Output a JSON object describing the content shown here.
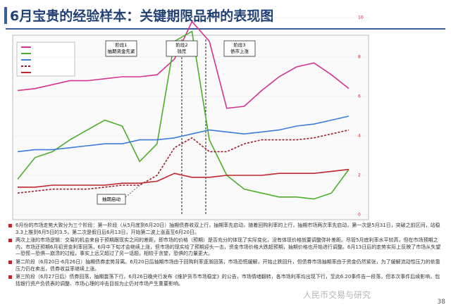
{
  "header": {
    "title": "6月宝贵的经验样本：关键期限品种的表现图"
  },
  "chart_data": {
    "type": "line",
    "ylim": [
      0,
      10
    ],
    "yticks": [
      0,
      2,
      4,
      6,
      8,
      10
    ],
    "grid": true,
    "series": [
      {
        "color": "#d6338f",
        "values": [
          6.3,
          6.4,
          6.6,
          6.8,
          6.8,
          6.9,
          7.0,
          7.0,
          7.1,
          7.9,
          9.8,
          8.8,
          5.4,
          5.5,
          6.3,
          7.0,
          7.5,
          7.7,
          7.1,
          6.4
        ]
      },
      {
        "color": "#4caf2a",
        "values": [
          1.8,
          2.9,
          3.2,
          3.8,
          4.3,
          4.8,
          4.5,
          2.7,
          3.6,
          8.8,
          9.3,
          3.8,
          2.0,
          1.3,
          1.1,
          0.9,
          0.9,
          0.8,
          1.1,
          2.3
        ]
      },
      {
        "color": "#3b7dd8",
        "values": [
          3.2,
          3.3,
          3.3,
          3.4,
          3.5,
          3.6,
          3.6,
          3.8,
          3.8,
          3.9,
          4.1,
          4.3,
          4.2,
          4.1,
          4.2,
          4.3,
          4.5,
          4.6,
          4.8,
          5.0
        ]
      },
      {
        "color": "#9b1d2a",
        "dashed": true,
        "values": [
          1.1,
          1.2,
          1.3,
          1.3,
          1.3,
          1.4,
          1.5,
          1.5,
          2.0,
          3.4,
          3.9,
          3.2,
          3.2,
          3.6,
          3.8,
          3.8,
          3.8,
          3.9,
          4.1,
          4.3
        ]
      },
      {
        "color": "#c0262d",
        "values": [
          1.4,
          1.4,
          1.5,
          1.5,
          1.5,
          1.5,
          1.6,
          1.6,
          1.7,
          2.1,
          1.9,
          1.9,
          2.0,
          2.0,
          2.0,
          2.1,
          2.1,
          2.1,
          2.2,
          2.3
        ]
      }
    ],
    "annotations": [
      {
        "title": "阶段1",
        "text": "抽期资金先紧"
      },
      {
        "title": "阶段2",
        "text": "钱荒"
      },
      {
        "title": "阶段3",
        "text": "债市上涨"
      }
    ],
    "event_label": "抽期启动"
  },
  "notes": [
    "6月份的市场走势大致分为三个阶段：第一阶段（从5月底到6月20日）抽期债券收双上行，抽期率先启动，随着回购利率的上行，抽期市场两次率先启动，第一次是5月31日，突破之前区间，站稳3.3上推到6月5日的3.5，第二次是假日后6月13日，开始第二波上涨直至6月20日。",
    "两次上涨的市场逻辑：交易的机会来自于预期跟现实之间的差距，即市场的价格（预期）是否充分的体现了实际变化，没有体现价格就要调整弥补差距。尽管5月底利率水平较高，但在市场预期之内，市场还预期6月初资金利率回落，6月中下旬才会继续上涨，但市场的现实给了预期迎头一击，资金市场价格大跌超预期，抽期价格也开始进行调整。6月13日后的走势实际上反映了市场从失望—恐慌—恐惧—崩溃的过程，事实上远又超过了另一话题，相较于贪婪，恐惧的力量更大。",
    "第二阶段（6月20日-6月26日）抽期债券走势背离。6月20日后抽期市场由于回购利率逐渐回落，市场恐慌缓解，开始止跌回升，但债券市场抽期率由于资金仍然紧张，为了缓解流动性压力的依靠压力仍在卖出，债券收益率继续上涨。",
    "第三阶段（6月27日后）债券回落，抽期震荡下行。6月26日晚央行发布《维护货币市场稳定》的公告，市场情绪翻转，各市场利率均出现下行，至此6.20事件告一段落，但本次事件后续影响，包括银行资产负债表的调整、市场心理的冲击目前为止仍对市场产生重要影响。"
  ],
  "watermark": "人民币交易与研究",
  "page_number": "38"
}
